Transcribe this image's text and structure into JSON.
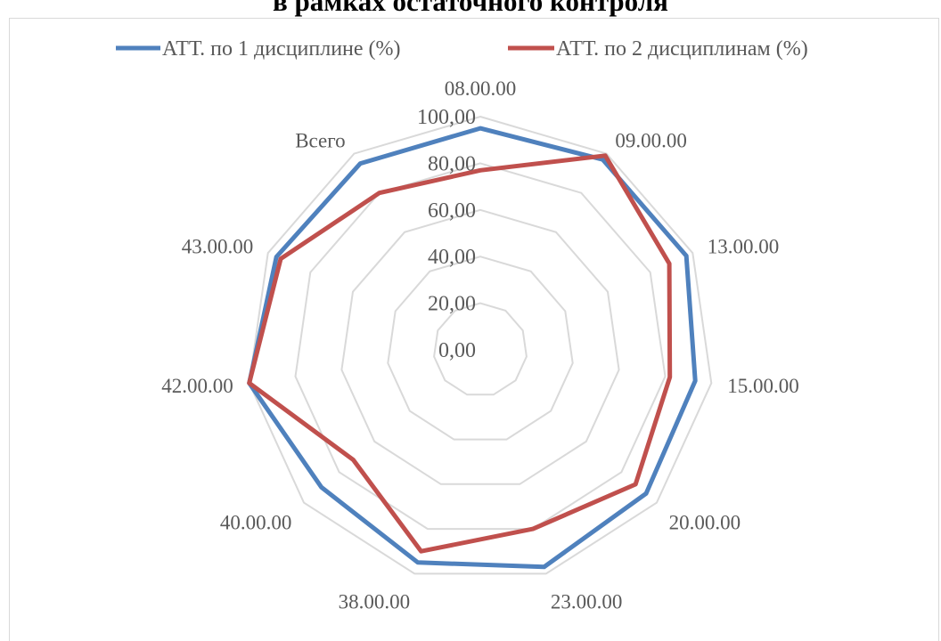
{
  "chart_data": {
    "type": "radar",
    "title": "в рамках остаточного контроля",
    "categories": [
      "08.00.00",
      "09.00.00",
      "13.00.00",
      "15.00.00",
      "20.00.00",
      "23.00.00",
      "38.00.00",
      "40.00.00",
      "42.00.00",
      "43.00.00",
      "Всего"
    ],
    "tick_labels": [
      "0,00",
      "20,00",
      "40,00",
      "60,00",
      "80,00",
      "100,00"
    ],
    "rlim": [
      0,
      100
    ],
    "grid": true,
    "legend_position": "top",
    "series": [
      {
        "name": "АТТ. по 1 дисциплине (%)",
        "color": "#4f81bd",
        "values": [
          95,
          97,
          97,
          93,
          94,
          97,
          95,
          90,
          100,
          96,
          95
        ]
      },
      {
        "name": "АТТ. по 2 дисциплинам (%)",
        "color": "#c0504d",
        "values": [
          77,
          99,
          89,
          82,
          88,
          80,
          90,
          72,
          100,
          94,
          80
        ]
      }
    ]
  }
}
